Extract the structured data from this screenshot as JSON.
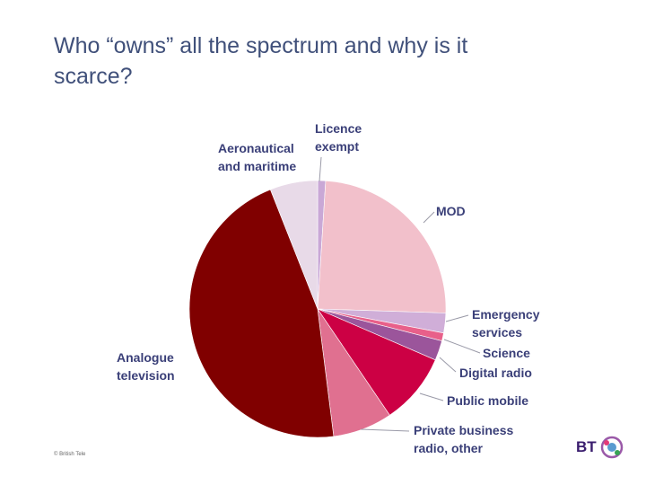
{
  "slide": {
    "title": "Who “owns” all the spectrum and why is it\nscarce?",
    "footer": "© British Tele",
    "logo_text": "BT"
  },
  "colors": {
    "title": "#40507a",
    "label": "#3a3f78",
    "leader_line": "#9a9aa8"
  },
  "chart_data": {
    "type": "pie",
    "title": "",
    "start_angle_deg": 0,
    "direction": "clockwise",
    "slices": [
      {
        "label": "Licence\nexempt",
        "value": 1.0,
        "color": "#c9a8d6"
      },
      {
        "label": "MOD",
        "value": 24.5,
        "color": "#f2c0cb"
      },
      {
        "label": "Emergency\nservices",
        "value": 2.5,
        "color": "#d0aed8"
      },
      {
        "label": "Science",
        "value": 1.0,
        "color": "#e8608a"
      },
      {
        "label": "Digital radio",
        "value": 2.5,
        "color": "#9b559b"
      },
      {
        "label": "Public mobile",
        "value": 9.0,
        "color": "#cc0044"
      },
      {
        "label": "Private business\nradio, other",
        "value": 7.5,
        "color": "#e07090"
      },
      {
        "label": "Analogue\ntelevision",
        "value": 46.0,
        "color": "#800000"
      },
      {
        "label": "Aeronautical\nand maritime",
        "value": 6.0,
        "color": "#e8dae8"
      }
    ]
  }
}
